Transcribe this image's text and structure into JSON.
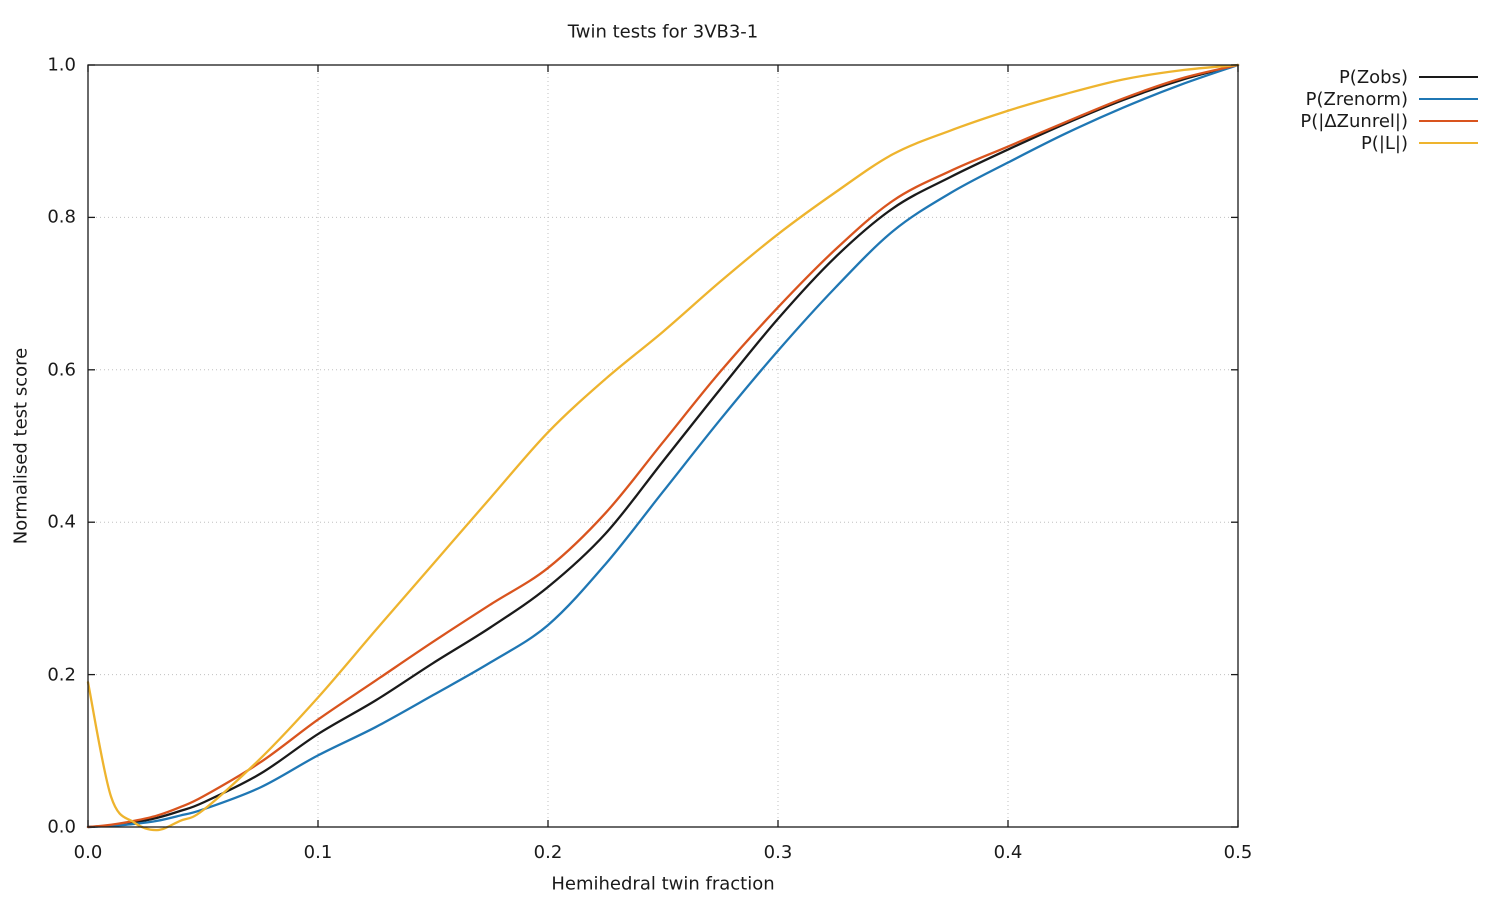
{
  "chart_data": {
    "type": "line",
    "title": "Twin tests for 3VB3-1",
    "xlabel": "Hemihedral twin fraction",
    "ylabel": "Normalised test score",
    "xlim": [
      0.0,
      0.5
    ],
    "ylim": [
      0.0,
      1.0
    ],
    "xticks": [
      "0.0",
      "0.1",
      "0.2",
      "0.3",
      "0.4",
      "0.5"
    ],
    "yticks": [
      "0.0",
      "0.2",
      "0.4",
      "0.6",
      "0.8",
      "1.0"
    ],
    "grid": "dotted",
    "legend_position": "outside-top-right",
    "x": [
      0,
      0.01,
      0.02,
      0.03,
      0.04,
      0.05,
      0.075,
      0.1,
      0.125,
      0.15,
      0.175,
      0.2,
      0.225,
      0.25,
      0.275,
      0.3,
      0.325,
      0.35,
      0.375,
      0.4,
      0.425,
      0.45,
      0.475,
      0.5
    ],
    "series": [
      {
        "name": "P(Zobs)",
        "color": "#1a1a1a",
        "values": [
          0,
          0.002,
          0.006,
          0.012,
          0.021,
          0.032,
          0.07,
          0.122,
          0.166,
          0.215,
          0.262,
          0.315,
          0.385,
          0.48,
          0.575,
          0.667,
          0.748,
          0.812,
          0.853,
          0.889,
          0.923,
          0.954,
          0.98,
          1.0
        ]
      },
      {
        "name": "P(Zrenorm)",
        "color": "#1f77b4",
        "values": [
          0,
          0.0015,
          0.004,
          0.008,
          0.015,
          0.023,
          0.052,
          0.094,
          0.131,
          0.173,
          0.216,
          0.265,
          0.345,
          0.44,
          0.535,
          0.625,
          0.708,
          0.782,
          0.832,
          0.872,
          0.91,
          0.944,
          0.974,
          1.0
        ]
      },
      {
        "name": "P(|ΔZunrel|)",
        "color": "#d9541e",
        "values": [
          0,
          0.003,
          0.008,
          0.015,
          0.026,
          0.04,
          0.085,
          0.141,
          0.192,
          0.243,
          0.292,
          0.34,
          0.412,
          0.505,
          0.598,
          0.682,
          0.758,
          0.822,
          0.861,
          0.893,
          0.925,
          0.956,
          0.982,
          1.0
        ]
      },
      {
        "name": "P(|L|)",
        "color": "#eeb42e",
        "values": [
          0.19,
          0.04,
          0.006,
          -0.004,
          0.008,
          0.022,
          0.09,
          0.17,
          0.258,
          0.345,
          0.432,
          0.518,
          0.588,
          0.65,
          0.716,
          0.778,
          0.833,
          0.883,
          0.914,
          0.94,
          0.962,
          0.981,
          0.993,
          1.0
        ]
      }
    ]
  },
  "colors": {
    "background": "#ffffff",
    "axis": "#1a1a1a",
    "grid": "#c0c0c0",
    "text": "#1a1a1a"
  }
}
